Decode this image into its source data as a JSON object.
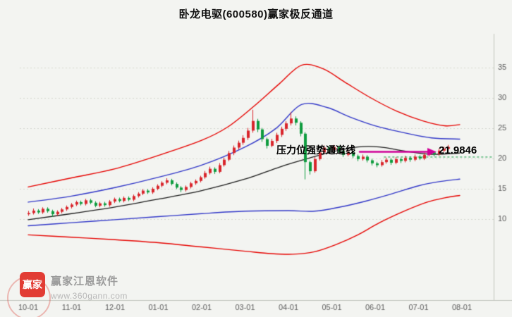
{
  "meta": {
    "title": "卧龙电驱(600580)赢家极反通道"
  },
  "annotation": {
    "pressure_label": "压力位强势通道线",
    "pressure_value": "21.9846",
    "arrow_color": "#cf0096"
  },
  "watermark": {
    "logo_text": "赢家",
    "brand": "赢家江恩软件",
    "site": "www.360gann.com"
  },
  "chart_data": {
    "type": "candlestick",
    "title": "卧龙电驱(600580)赢家极反通道",
    "x_tick_labels": [
      "10-01",
      "11-01",
      "12-01",
      "01-01",
      "02-01",
      "03-01",
      "04-01",
      "05-01",
      "06-01",
      "07-01",
      "08-01"
    ],
    "y_ticks": [
      10,
      15,
      20,
      25,
      30,
      35
    ],
    "y_range_visible": [
      3,
      40
    ],
    "time_unit": "months from 10-01",
    "candle_t0": 0,
    "candle_t_step": 0.11,
    "grid": "horizontal-dotted",
    "legend_position": "none",
    "colors": {
      "up": "#d9252b",
      "down": "#0f9c3f",
      "outer_band": "#e60400",
      "inner_band": "#3137c8",
      "mid_line": "#1b1b1b",
      "arrow": "#cf0096",
      "dashed_guide": "#0a9a3c",
      "grid": "#d4d7cf",
      "axis": "#c0c4bb",
      "tick_text": "#5c5c5c"
    },
    "resistance_line": {
      "label": "压力位强势通道线",
      "value": 21.9846
    },
    "dashed_guide": {
      "value": 20.3,
      "t_start": 8.2
    },
    "candles_ohlc": [
      [
        10.8,
        11.3,
        10.6,
        11.0
      ],
      [
        11.0,
        11.7,
        10.8,
        11.4
      ],
      [
        11.4,
        11.6,
        10.9,
        11.1
      ],
      [
        11.1,
        11.9,
        10.9,
        11.7
      ],
      [
        11.7,
        11.9,
        11.1,
        11.3
      ],
      [
        11.3,
        11.5,
        10.4,
        10.8
      ],
      [
        10.8,
        11.4,
        10.6,
        11.2
      ],
      [
        11.2,
        11.8,
        11.0,
        11.6
      ],
      [
        11.6,
        12.2,
        11.4,
        12.0
      ],
      [
        12.0,
        12.6,
        11.8,
        12.4
      ],
      [
        12.4,
        13.0,
        12.2,
        12.8
      ],
      [
        12.8,
        13.0,
        12.3,
        12.5
      ],
      [
        12.5,
        13.3,
        12.3,
        13.1
      ],
      [
        13.1,
        13.3,
        12.5,
        12.7
      ],
      [
        12.7,
        12.9,
        12.0,
        12.2
      ],
      [
        12.2,
        12.8,
        12.0,
        12.6
      ],
      [
        12.6,
        12.8,
        12.1,
        12.3
      ],
      [
        12.3,
        13.1,
        12.1,
        12.9
      ],
      [
        12.9,
        13.5,
        12.7,
        13.3
      ],
      [
        13.3,
        13.5,
        12.8,
        13.0
      ],
      [
        13.0,
        13.7,
        12.8,
        13.5
      ],
      [
        13.5,
        13.7,
        13.0,
        13.2
      ],
      [
        13.2,
        14.0,
        13.0,
        13.8
      ],
      [
        13.8,
        14.4,
        13.6,
        14.2
      ],
      [
        14.2,
        14.9,
        14.0,
        14.7
      ],
      [
        14.7,
        14.9,
        14.2,
        14.4
      ],
      [
        14.4,
        15.2,
        14.2,
        15.0
      ],
      [
        15.0,
        15.7,
        14.8,
        15.5
      ],
      [
        15.5,
        16.2,
        15.3,
        16.0
      ],
      [
        16.0,
        16.7,
        15.8,
        16.4
      ],
      [
        16.4,
        16.6,
        15.6,
        15.8
      ],
      [
        15.8,
        16.0,
        15.0,
        15.2
      ],
      [
        15.2,
        15.4,
        14.5,
        14.8
      ],
      [
        14.8,
        15.5,
        14.6,
        15.3
      ],
      [
        15.3,
        16.1,
        15.1,
        15.9
      ],
      [
        15.9,
        16.5,
        15.7,
        16.3
      ],
      [
        16.3,
        17.1,
        16.1,
        16.9
      ],
      [
        16.9,
        17.9,
        16.7,
        17.6
      ],
      [
        17.6,
        18.6,
        17.4,
        18.3
      ],
      [
        18.3,
        18.5,
        17.5,
        17.8
      ],
      [
        17.8,
        19.2,
        17.6,
        18.9
      ],
      [
        18.9,
        20.1,
        18.7,
        19.8
      ],
      [
        19.8,
        21.2,
        19.6,
        20.9
      ],
      [
        20.9,
        22.1,
        20.6,
        21.8
      ],
      [
        21.8,
        22.9,
        21.5,
        22.6
      ],
      [
        22.6,
        23.8,
        22.3,
        23.4
      ],
      [
        23.4,
        25.0,
        23.1,
        24.6
      ],
      [
        24.6,
        28.0,
        24.3,
        26.2
      ],
      [
        26.2,
        26.5,
        24.4,
        24.8
      ],
      [
        24.8,
        25.0,
        22.8,
        23.2
      ],
      [
        23.2,
        23.4,
        21.7,
        22.1
      ],
      [
        22.1,
        23.2,
        21.9,
        22.9
      ],
      [
        22.9,
        24.2,
        22.6,
        23.9
      ],
      [
        23.9,
        25.2,
        23.6,
        24.9
      ],
      [
        24.9,
        26.1,
        24.6,
        25.8
      ],
      [
        25.8,
        27.6,
        25.5,
        26.6
      ],
      [
        26.6,
        26.9,
        25.5,
        25.9
      ],
      [
        25.9,
        26.1,
        23.7,
        24.1
      ],
      [
        24.1,
        24.3,
        16.6,
        19.4
      ],
      [
        19.4,
        19.6,
        17.4,
        17.9
      ],
      [
        17.9,
        20.2,
        17.7,
        19.9
      ],
      [
        19.9,
        21.3,
        19.7,
        21.0
      ],
      [
        21.0,
        22.1,
        20.8,
        21.8
      ],
      [
        21.8,
        22.0,
        21.1,
        21.4
      ],
      [
        21.4,
        22.2,
        21.2,
        21.9
      ],
      [
        21.9,
        22.1,
        21.0,
        21.2
      ],
      [
        21.2,
        21.4,
        20.3,
        20.6
      ],
      [
        20.6,
        21.3,
        20.4,
        21.0
      ],
      [
        21.0,
        21.2,
        20.1,
        20.4
      ],
      [
        20.4,
        20.6,
        19.6,
        19.9
      ],
      [
        19.9,
        20.6,
        19.7,
        20.3
      ],
      [
        20.3,
        20.5,
        19.4,
        19.7
      ],
      [
        19.7,
        19.9,
        18.9,
        19.2
      ],
      [
        19.2,
        19.4,
        18.6,
        18.9
      ],
      [
        18.9,
        19.7,
        18.7,
        19.4
      ],
      [
        19.4,
        20.1,
        19.2,
        19.8
      ],
      [
        19.8,
        20.0,
        19.0,
        19.3
      ],
      [
        19.3,
        20.2,
        19.1,
        19.9
      ],
      [
        19.9,
        20.1,
        19.3,
        19.6
      ],
      [
        19.6,
        20.4,
        19.4,
        20.1
      ],
      [
        20.1,
        20.3,
        19.5,
        19.8
      ],
      [
        19.8,
        20.6,
        19.6,
        20.3
      ],
      [
        20.3,
        20.5,
        19.8,
        20.0
      ],
      [
        20.0,
        20.9,
        19.8,
        20.6
      ],
      [
        20.6,
        21.3,
        20.4,
        21.0
      ],
      [
        21.0,
        21.2,
        20.4,
        20.7
      ],
      [
        20.7,
        21.6,
        20.5,
        21.3
      ],
      [
        21.3,
        21.9,
        21.1,
        21.6
      ],
      [
        21.6,
        22.2,
        21.4,
        21.9
      ]
    ],
    "lines": [
      {
        "name": "upper_outer_channel",
        "color": "#e60400",
        "width": 1.4,
        "points": [
          [
            0,
            15.3
          ],
          [
            1,
            16.8
          ],
          [
            2,
            18.3
          ],
          [
            3,
            20.5
          ],
          [
            4,
            23.0
          ],
          [
            4.6,
            25.2
          ],
          [
            5.2,
            28.6
          ],
          [
            5.8,
            32.4
          ],
          [
            6.3,
            35.4
          ],
          [
            6.8,
            34.8
          ],
          [
            7.3,
            32.6
          ],
          [
            7.9,
            30.0
          ],
          [
            8.5,
            27.8
          ],
          [
            9.1,
            26.2
          ],
          [
            9.6,
            25.4
          ],
          [
            9.95,
            25.6
          ]
        ]
      },
      {
        "name": "upper_inner_channel",
        "color": "#3137c8",
        "width": 1.4,
        "points": [
          [
            0,
            12.8
          ],
          [
            1,
            13.8
          ],
          [
            2,
            15.2
          ],
          [
            3,
            16.9
          ],
          [
            4,
            18.9
          ],
          [
            5,
            21.9
          ],
          [
            5.7,
            24.9
          ],
          [
            6.3,
            28.9
          ],
          [
            6.9,
            28.4
          ],
          [
            7.4,
            26.9
          ],
          [
            8,
            25.4
          ],
          [
            8.7,
            24.2
          ],
          [
            9.3,
            23.4
          ],
          [
            9.95,
            23.2
          ]
        ]
      },
      {
        "name": "mid_line",
        "color": "#1b1b1b",
        "width": 1.3,
        "points": [
          [
            0,
            9.9
          ],
          [
            1,
            10.9
          ],
          [
            2,
            12.0
          ],
          [
            3,
            13.3
          ],
          [
            4,
            14.7
          ],
          [
            5,
            16.6
          ],
          [
            5.8,
            18.6
          ],
          [
            6.4,
            19.9
          ],
          [
            7,
            21.1
          ],
          [
            7.6,
            21.9
          ],
          [
            8.1,
            21.9
          ],
          [
            8.7,
            21.2
          ],
          [
            9.3,
            20.7
          ],
          [
            9.95,
            20.9
          ]
        ]
      },
      {
        "name": "lower_inner_channel",
        "color": "#3137c8",
        "width": 1.4,
        "points": [
          [
            0,
            8.9
          ],
          [
            1,
            9.4
          ],
          [
            2,
            9.9
          ],
          [
            3,
            10.4
          ],
          [
            4,
            10.9
          ],
          [
            5,
            11.3
          ],
          [
            6,
            11.4
          ],
          [
            6.6,
            11.3
          ],
          [
            7.2,
            12.0
          ],
          [
            7.8,
            13.0
          ],
          [
            8.4,
            14.2
          ],
          [
            9,
            15.5
          ],
          [
            9.5,
            16.2
          ],
          [
            9.95,
            16.6
          ]
        ]
      },
      {
        "name": "lower_outer_channel",
        "color": "#e60400",
        "width": 1.4,
        "points": [
          [
            0,
            7.4
          ],
          [
            1,
            7.0
          ],
          [
            2,
            6.6
          ],
          [
            3,
            6.1
          ],
          [
            4,
            5.4
          ],
          [
            5,
            4.7
          ],
          [
            5.6,
            4.3
          ],
          [
            6.1,
            4.2
          ],
          [
            6.6,
            4.6
          ],
          [
            7.1,
            5.8
          ],
          [
            7.6,
            7.4
          ],
          [
            8.1,
            9.4
          ],
          [
            8.7,
            11.4
          ],
          [
            9.2,
            12.8
          ],
          [
            9.6,
            13.5
          ],
          [
            9.95,
            13.9
          ]
        ]
      }
    ]
  }
}
